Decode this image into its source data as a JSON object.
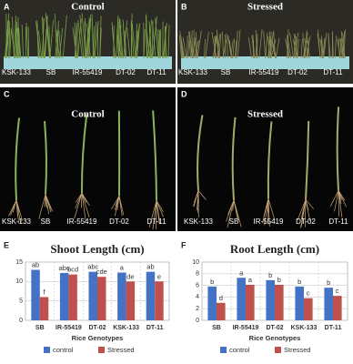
{
  "photos": [
    {
      "panel_label": "A",
      "title": "Control",
      "labels": [
        "KSK-133",
        "SB",
        "IR-55419",
        "DT-02",
        "DT-11"
      ]
    },
    {
      "panel_label": "B",
      "title": "Stressed",
      "labels": [
        "KSK-133",
        "SB",
        "IR-55419",
        "DT-02",
        "DT-11"
      ]
    },
    {
      "panel_label": "C",
      "title": "Control",
      "labels": [
        "KSK-133",
        "SB",
        "IR-55419",
        "DT-02",
        "DT-11"
      ]
    },
    {
      "panel_label": "D",
      "title": "Stressed",
      "labels": [
        "KSK-133",
        "SB",
        "IR-55419",
        "DT-02",
        "DT-11"
      ]
    }
  ],
  "chart_data": [
    {
      "type": "bar",
      "panel_label": "E",
      "title": "Shoot Length (cm)",
      "x_label": "Rice Genotypes",
      "categories": [
        "SB",
        "IR-55419",
        "DT-02",
        "KSK-133",
        "DT-11"
      ],
      "series": [
        {
          "name": "control",
          "color": "#4472c4",
          "values": [
            13,
            12.2,
            12.5,
            12.3,
            12.5
          ],
          "annotations": [
            "ab",
            "abc",
            "abc",
            "a",
            "ab"
          ]
        },
        {
          "name": "Stressed",
          "color": "#c0504d",
          "values": [
            6,
            11.8,
            11.2,
            10,
            10
          ],
          "annotations": [
            "f",
            "bcd",
            "cde",
            "de",
            "e"
          ]
        }
      ],
      "ylim": [
        0,
        15
      ],
      "yticks": [
        0,
        5,
        10,
        15
      ],
      "grid": true
    },
    {
      "type": "bar",
      "panel_label": "F",
      "title": "Root Length (cm)",
      "x_label": "Rice Genotypes",
      "categories": [
        "SB",
        "IR-55419",
        "DT-02",
        "KSK-133",
        "DT-11"
      ],
      "series": [
        {
          "name": "control",
          "color": "#4472c4",
          "values": [
            5.8,
            7.3,
            6.9,
            5.8,
            5.6
          ],
          "annotations": [
            "b",
            "a",
            "b",
            "b",
            "b"
          ]
        },
        {
          "name": "Stressed",
          "color": "#c0504d",
          "values": [
            3,
            6.1,
            6.1,
            3.8,
            4.2
          ],
          "annotations": [
            "d",
            "a",
            "b",
            "c",
            "c"
          ]
        }
      ],
      "ylim": [
        0,
        10
      ],
      "yticks": [
        0,
        2,
        4,
        6,
        8,
        10
      ],
      "grid": true
    }
  ]
}
